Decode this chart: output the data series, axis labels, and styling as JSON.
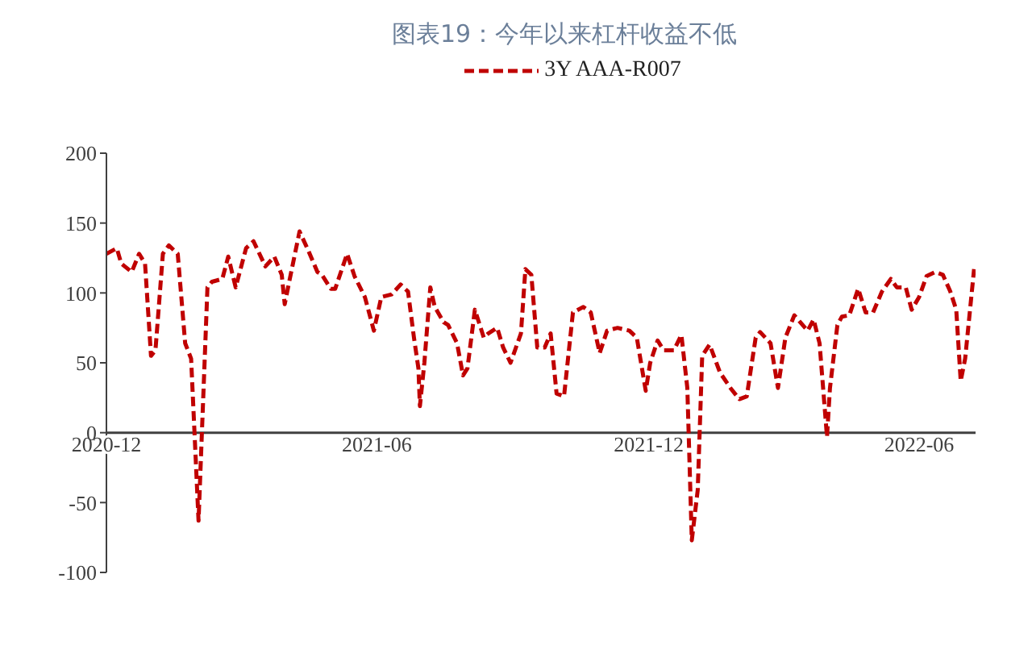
{
  "chart_data": {
    "type": "line",
    "title": "图表19：今年以来杠杆收益不低",
    "x": [
      "2020-12-01",
      "2020-12-08",
      "2020-12-11",
      "2020-12-18",
      "2020-12-23",
      "2020-12-27",
      "2020-12-31",
      "2021-01-03",
      "2021-01-08",
      "2021-01-12",
      "2021-01-18",
      "2021-01-23",
      "2021-01-27",
      "2021-02-01",
      "2021-02-07",
      "2021-02-10",
      "2021-02-17",
      "2021-02-21",
      "2021-02-26",
      "2021-03-05",
      "2021-03-10",
      "2021-03-18",
      "2021-03-24",
      "2021-03-29",
      "2021-03-31",
      "2021-04-04",
      "2021-04-10",
      "2021-04-16",
      "2021-04-22",
      "2021-04-25",
      "2021-05-01",
      "2021-05-04",
      "2021-05-12",
      "2021-05-17",
      "2021-05-24",
      "2021-05-30",
      "2021-06-04",
      "2021-06-11",
      "2021-06-17",
      "2021-06-22",
      "2021-06-26",
      "2021-06-29",
      "2021-06-30",
      "2021-07-03",
      "2021-07-07",
      "2021-07-10",
      "2021-07-16",
      "2021-07-19",
      "2021-07-25",
      "2021-07-29",
      "2021-08-01",
      "2021-08-06",
      "2021-08-12",
      "2021-08-15",
      "2021-08-21",
      "2021-08-25",
      "2021-08-30",
      "2021-09-06",
      "2021-09-09",
      "2021-09-13",
      "2021-09-17",
      "2021-09-22",
      "2021-09-26",
      "2021-09-30",
      "2021-10-05",
      "2021-10-11",
      "2021-10-18",
      "2021-10-23",
      "2021-10-29",
      "2021-11-03",
      "2021-11-10",
      "2021-11-18",
      "2021-11-23",
      "2021-11-29",
      "2021-12-02",
      "2021-12-07",
      "2021-12-11",
      "2021-12-16",
      "2021-12-18",
      "2021-12-23",
      "2021-12-27",
      "2021-12-30",
      "2022-01-03",
      "2022-01-06",
      "2022-01-11",
      "2022-01-18",
      "2022-01-25",
      "2022-01-31",
      "2022-02-05",
      "2022-02-11",
      "2022-02-14",
      "2022-02-21",
      "2022-02-26",
      "2022-03-03",
      "2022-03-09",
      "2022-03-13",
      "2022-03-18",
      "2022-03-22",
      "2022-03-26",
      "2022-03-31",
      "2022-04-02",
      "2022-04-07",
      "2022-04-10",
      "2022-04-15",
      "2022-04-21",
      "2022-04-26",
      "2022-05-01",
      "2022-05-07",
      "2022-05-13",
      "2022-05-17",
      "2022-05-23",
      "2022-05-27",
      "2022-06-01",
      "2022-06-06",
      "2022-06-12",
      "2022-06-17",
      "2022-06-22",
      "2022-06-26",
      "2022-06-29",
      "2022-07-02",
      "2022-07-08"
    ],
    "series": [
      {
        "name": "3Y AAA-R007",
        "color": "#c00000",
        "values": [
          128,
          132,
          121,
          115,
          128,
          121,
          55,
          59,
          128,
          134,
          128,
          64,
          53,
          -63,
          104,
          108,
          110,
          126,
          104,
          132,
          137,
          119,
          126,
          113,
          92,
          113,
          144,
          130,
          115,
          113,
          103,
          103,
          128,
          112,
          97,
          73,
          97,
          99,
          106,
          101,
          68,
          46,
          19,
          50,
          104,
          90,
          79,
          77,
          64,
          41,
          46,
          88,
          68,
          71,
          75,
          61,
          50,
          71,
          117,
          113,
          61,
          61,
          71,
          28,
          26,
          86,
          90,
          86,
          57,
          73,
          75,
          73,
          68,
          30,
          50,
          66,
          59,
          59,
          59,
          70,
          32,
          -77,
          -41,
          55,
          63,
          43,
          32,
          24,
          26,
          68,
          72,
          64,
          32,
          68,
          84,
          79,
          73,
          81,
          64,
          -3,
          32,
          77,
          83,
          84,
          103,
          86,
          86,
          101,
          110,
          104,
          104,
          88,
          97,
          112,
          115,
          113,
          101,
          88,
          37,
          53,
          117
        ]
      }
    ],
    "xlim": [
      "2020-12-01",
      "2022-07-09"
    ],
    "xticks": [
      "2020-12",
      "2021-06",
      "2021-12",
      "2022-06"
    ],
    "ylim": [
      -100,
      200
    ],
    "yticks": [
      -100,
      -50,
      0,
      50,
      100,
      150,
      200
    ],
    "grid": false,
    "legend": "top",
    "marker": "none",
    "line_style": "dashed"
  }
}
